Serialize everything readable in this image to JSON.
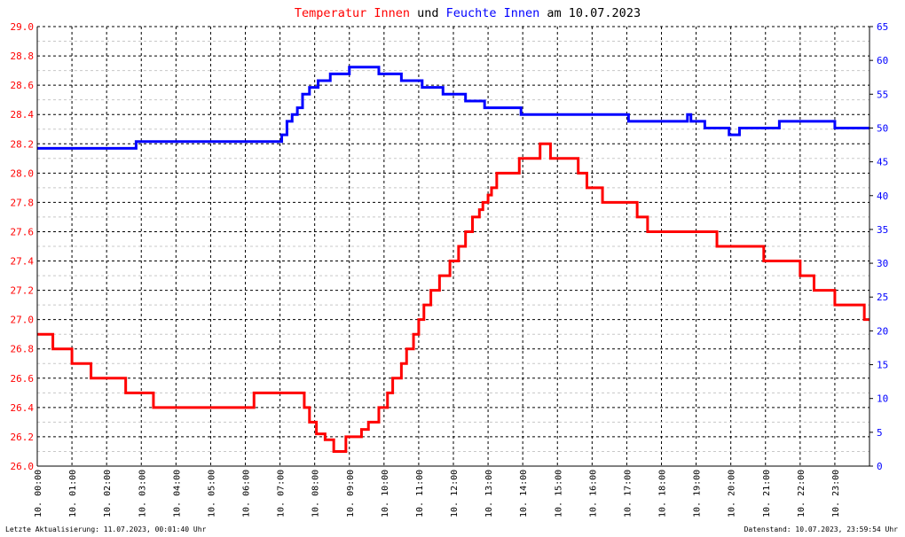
{
  "title": {
    "part1": "Temperatur Innen",
    "part2": " und ",
    "part3": "Feuchte Innen",
    "part4": " am 10.07.2023"
  },
  "colors": {
    "temperature": "#ff0000",
    "humidity": "#0000ff",
    "grid": "#000000",
    "text": "#000000"
  },
  "footer": {
    "left": "Letzte Aktualisierung: 11.07.2023, 00:01:40 Uhr",
    "right": "Datenstand: 10.07.2023, 23:59:54 Uhr"
  },
  "chart_data": {
    "type": "line",
    "title": "Temperatur Innen und Feuchte Innen am 10.07.2023",
    "grid": true,
    "x_unit": "hours",
    "xlim": [
      0,
      24
    ],
    "x_ticks": [
      0,
      1,
      2,
      3,
      4,
      5,
      6,
      7,
      8,
      9,
      10,
      11,
      12,
      13,
      14,
      15,
      16,
      17,
      18,
      19,
      20,
      21,
      22,
      23
    ],
    "x_tick_labels": [
      "10. 00:00",
      "10. 01:00",
      "10. 02:00",
      "10. 03:00",
      "10. 04:00",
      "10. 05:00",
      "10. 06:00",
      "10. 07:00",
      "10. 08:00",
      "10. 09:00",
      "10. 10:00",
      "10. 11:00",
      "10. 12:00",
      "10. 13:00",
      "10. 14:00",
      "10. 15:00",
      "10. 16:00",
      "10. 17:00",
      "10. 18:00",
      "10. 19:00",
      "10. 20:00",
      "10. 21:00",
      "10. 22:00",
      "10. 23:00"
    ],
    "y_left": {
      "lim": [
        26.0,
        29.0
      ],
      "ticks": [
        "26.0",
        "26.2",
        "26.4",
        "26.6",
        "26.8",
        "27.0",
        "27.2",
        "27.4",
        "27.6",
        "27.8",
        "28.0",
        "28.2",
        "28.4",
        "28.6",
        "28.8",
        "29.0"
      ]
    },
    "y_right": {
      "lim": [
        0,
        65
      ],
      "ticks": [
        "0",
        "5",
        "10",
        "15",
        "20",
        "25",
        "30",
        "35",
        "40",
        "45",
        "50",
        "55",
        "60",
        "65"
      ]
    },
    "series": [
      {
        "name": "Temperatur Innen",
        "axis": "left",
        "color": "#ff0000",
        "x": [
          0,
          0.45,
          0.45,
          1.0,
          1.0,
          1.55,
          1.55,
          2.55,
          2.55,
          3.35,
          3.35,
          5.5,
          5.5,
          6.25,
          6.25,
          7.0,
          7.0,
          7.7,
          7.7,
          7.85,
          7.85,
          8.05,
          8.05,
          8.3,
          8.3,
          8.55,
          8.55,
          8.9,
          8.9,
          9.35,
          9.35,
          9.55,
          9.55,
          9.85,
          9.85,
          10.1,
          10.1,
          10.25,
          10.25,
          10.5,
          10.5,
          10.65,
          10.65,
          10.85,
          10.85,
          11.0,
          11.0,
          11.15,
          11.15,
          11.35,
          11.35,
          11.6,
          11.6,
          11.9,
          11.9,
          12.15,
          12.15,
          12.35,
          12.35,
          12.55,
          12.55,
          12.75,
          12.75,
          12.85,
          12.85,
          13.0,
          13.0,
          13.1,
          13.1,
          13.25,
          13.25,
          13.45,
          13.45,
          13.9,
          13.9,
          14.5,
          14.5,
          14.8,
          14.8,
          15.6,
          15.6,
          15.85,
          15.85,
          16.3,
          16.3,
          16.8,
          16.8,
          17.3,
          17.3,
          17.6,
          17.6,
          18.0,
          18.0,
          19.6,
          19.6,
          20.95,
          20.95,
          21.55,
          21.55,
          22.0,
          22.0,
          22.4,
          22.4,
          22.85,
          22.85,
          23.0,
          23.0,
          23.85,
          23.85,
          24.0
        ],
        "y": [
          26.9,
          26.9,
          26.8,
          26.8,
          26.7,
          26.7,
          26.6,
          26.6,
          26.5,
          26.5,
          26.4,
          26.4,
          26.4,
          26.4,
          26.5,
          26.5,
          26.5,
          26.5,
          26.4,
          26.4,
          26.3,
          26.3,
          26.22,
          26.22,
          26.18,
          26.18,
          26.1,
          26.1,
          26.2,
          26.2,
          26.25,
          26.25,
          26.3,
          26.3,
          26.4,
          26.4,
          26.5,
          26.5,
          26.6,
          26.6,
          26.7,
          26.7,
          26.8,
          26.8,
          26.9,
          26.9,
          27.0,
          27.0,
          27.1,
          27.1,
          27.2,
          27.2,
          27.3,
          27.3,
          27.4,
          27.4,
          27.5,
          27.5,
          27.6,
          27.6,
          27.7,
          27.7,
          27.75,
          27.75,
          27.8,
          27.8,
          27.85,
          27.85,
          27.9,
          27.9,
          28.0,
          28.0,
          28.0,
          28.0,
          28.1,
          28.1,
          28.2,
          28.2,
          28.1,
          28.1,
          28.0,
          28.0,
          27.9,
          27.9,
          27.8,
          27.8,
          27.8,
          27.8,
          27.7,
          27.7,
          27.6,
          27.6,
          27.6,
          27.6,
          27.5,
          27.5,
          27.4,
          27.4,
          27.4,
          27.4,
          27.3,
          27.3,
          27.2,
          27.2,
          27.2,
          27.2,
          27.1,
          27.1,
          27.0,
          27.0
        ]
      },
      {
        "name": "Feuchte Innen",
        "axis": "right",
        "color": "#0000ff",
        "x": [
          0,
          2.85,
          2.85,
          7.05,
          7.05,
          7.2,
          7.2,
          7.35,
          7.35,
          7.5,
          7.5,
          7.65,
          7.65,
          7.85,
          7.85,
          8.1,
          8.1,
          8.45,
          8.45,
          9.0,
          9.0,
          9.85,
          9.85,
          10.5,
          10.5,
          11.1,
          11.1,
          11.7,
          11.7,
          12.35,
          12.35,
          12.9,
          12.9,
          13.95,
          13.95,
          17.05,
          17.05,
          18.75,
          18.75,
          18.85,
          18.85,
          19.25,
          19.25,
          19.95,
          19.95,
          20.25,
          20.25,
          21.4,
          21.4,
          23.0,
          23.0,
          24.0
        ],
        "y": [
          47,
          47,
          48,
          48,
          49,
          49,
          51,
          51,
          52,
          52,
          53,
          53,
          55,
          55,
          56,
          56,
          57,
          57,
          58,
          58,
          59,
          59,
          58,
          58,
          57,
          57,
          56,
          56,
          55,
          55,
          54,
          54,
          53,
          53,
          52,
          52,
          51,
          51,
          52,
          52,
          51,
          51,
          50,
          50,
          49,
          49,
          50,
          50,
          51,
          51,
          50,
          50
        ]
      }
    ]
  }
}
